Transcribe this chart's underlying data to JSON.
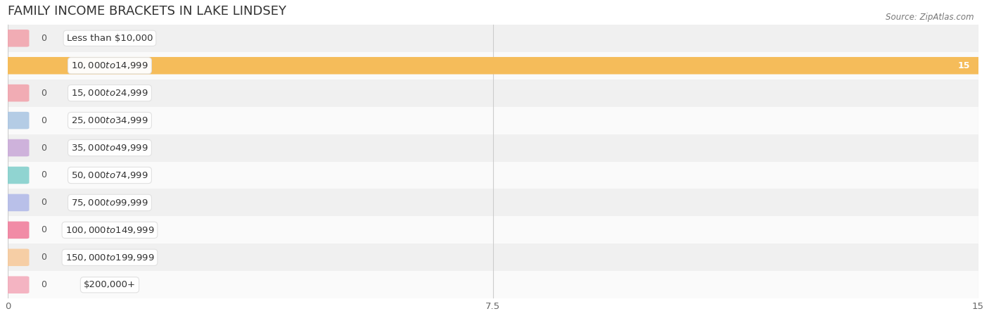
{
  "title": "Family Income Brackets in Lake Lindsey",
  "source": "Source: ZipAtlas.com",
  "categories": [
    "Less than $10,000",
    "$10,000 to $14,999",
    "$15,000 to $24,999",
    "$25,000 to $34,999",
    "$35,000 to $49,999",
    "$50,000 to $74,999",
    "$75,000 to $99,999",
    "$100,000 to $149,999",
    "$150,000 to $199,999",
    "$200,000+"
  ],
  "values": [
    0,
    15,
    0,
    0,
    0,
    0,
    0,
    0,
    0,
    0
  ],
  "bar_colors": [
    "#f2a0aa",
    "#f5bc5a",
    "#f2a0aa",
    "#a8c4e2",
    "#c8a8d8",
    "#7ececa",
    "#b0b8e8",
    "#f07898",
    "#f8c898",
    "#f4a8b8"
  ],
  "xlim": [
    0,
    15
  ],
  "xticks": [
    0,
    7.5,
    15
  ],
  "xtick_labels": [
    "0",
    "7.5",
    "15"
  ],
  "title_fontsize": 13,
  "label_fontsize": 9.5,
  "value_fontsize": 9,
  "bar_height": 0.55,
  "fig_bg": "#ffffff",
  "row_bg_even": "#f0f0f0",
  "row_bg_odd": "#fafafa",
  "grid_color": "#cccccc",
  "title_color": "#333333",
  "source_color": "#777777",
  "label_color": "#333333",
  "value_color_dark": "#555555",
  "value_color_light": "#ffffff"
}
